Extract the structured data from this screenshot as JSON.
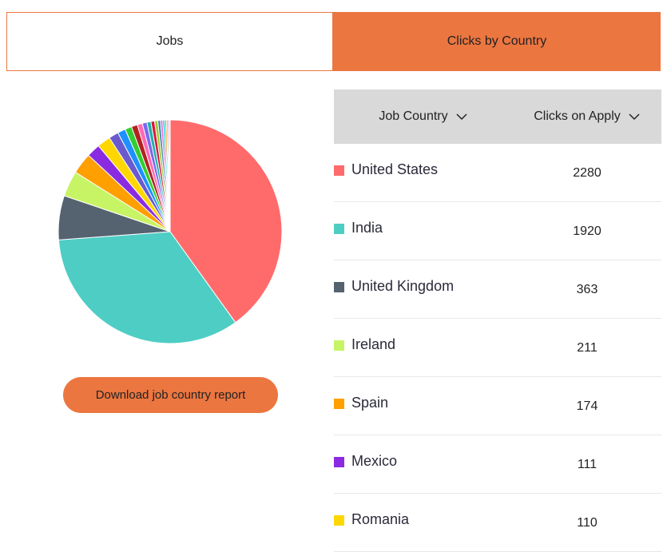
{
  "tabs": {
    "jobs": "Jobs",
    "clicks_by_country": "Clicks by Country"
  },
  "download_button": "Download job country report",
  "table": {
    "headers": {
      "country": "Job Country",
      "clicks": "Clicks on Apply"
    },
    "rows": [
      {
        "country": "United States",
        "clicks": "2280",
        "color": "#ff6b6b"
      },
      {
        "country": "India",
        "clicks": "1920",
        "color": "#4ecdc4"
      },
      {
        "country": "United Kingdom",
        "clicks": "363",
        "color": "#556270"
      },
      {
        "country": "Ireland",
        "clicks": "211",
        "color": "#c7f464"
      },
      {
        "country": "Spain",
        "clicks": "174",
        "color": "#ff9f00"
      },
      {
        "country": "Mexico",
        "clicks": "111",
        "color": "#8a2be2"
      },
      {
        "country": "Romania",
        "clicks": "110",
        "color": "#ffd700"
      }
    ]
  },
  "chart_data": {
    "type": "pie",
    "slices": [
      {
        "value": 2280,
        "color": "#ff6b6b"
      },
      {
        "value": 1920,
        "color": "#4ecdc4"
      },
      {
        "value": 363,
        "color": "#556270"
      },
      {
        "value": 211,
        "color": "#c7f464"
      },
      {
        "value": 174,
        "color": "#ff9f00"
      },
      {
        "value": 111,
        "color": "#8a2be2"
      },
      {
        "value": 110,
        "color": "#ffd700"
      },
      {
        "value": 80,
        "color": "#6a5acd"
      },
      {
        "value": 65,
        "color": "#1e90ff"
      },
      {
        "value": 55,
        "color": "#32cd32"
      },
      {
        "value": 50,
        "color": "#b22222"
      },
      {
        "value": 42,
        "color": "#ff69b4"
      },
      {
        "value": 38,
        "color": "#7b68ee"
      },
      {
        "value": 33,
        "color": "#20b2aa"
      },
      {
        "value": 30,
        "color": "#dc143c"
      },
      {
        "value": 26,
        "color": "#9acd32"
      },
      {
        "value": 22,
        "color": "#4682b4"
      },
      {
        "value": 19,
        "color": "#da70d6"
      },
      {
        "value": 16,
        "color": "#00ced1"
      },
      {
        "value": 14,
        "color": "#ff8c00"
      },
      {
        "value": 12,
        "color": "#8fbc8f"
      },
      {
        "value": 10,
        "color": "#9932cc"
      },
      {
        "value": 8,
        "color": "#adff2f"
      }
    ]
  }
}
